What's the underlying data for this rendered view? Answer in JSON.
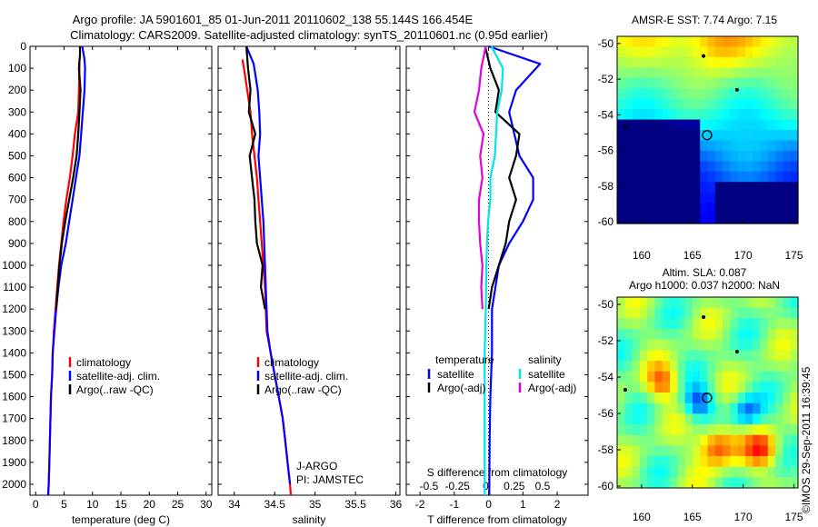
{
  "header": {
    "line1": "Argo profile: JA 5901601_85 01-Jun-2011 20110602_138 55.144S 166.454E",
    "line2": "Climatology: CARS2009. Satellite-adjusted climatology: synTS_20110601.nc (0.95d earlier)"
  },
  "chart_data": [
    {
      "type": "line",
      "xlabel": "temperature (deg C)",
      "ylabel": "",
      "xlim": [
        -1,
        31
      ],
      "ylim": [
        2050,
        0
      ],
      "y_reversed": true,
      "xticks": [
        "0",
        "5",
        "10",
        "15",
        "20",
        "25",
        "30"
      ],
      "yticks": [
        "0",
        "100",
        "200",
        "300",
        "400",
        "500",
        "600",
        "700",
        "800",
        "900",
        "1000",
        "1100",
        "1200",
        "1300",
        "1400",
        "1500",
        "1600",
        "1700",
        "1800",
        "1900",
        "2000"
      ],
      "legend": {
        "position": "lower-right",
        "entries": [
          "climatology",
          "satellite-adj. clim.",
          "Argo(..raw -QC)"
        ]
      },
      "series": [
        {
          "name": "climatology",
          "color": "#ff0000",
          "points": [
            [
              7.7,
              60
            ],
            [
              7.7,
              100
            ],
            [
              7.6,
              200
            ],
            [
              7.5,
              300
            ],
            [
              6.9,
              400
            ],
            [
              6.5,
              500
            ],
            [
              6.0,
              600
            ],
            [
              5.4,
              700
            ],
            [
              4.9,
              800
            ],
            [
              4.5,
              900
            ],
            [
              4.1,
              1000
            ],
            [
              3.8,
              1100
            ],
            [
              3.5,
              1200
            ],
            [
              3.2,
              1300
            ],
            [
              3.0,
              1400
            ],
            [
              2.9,
              1500
            ],
            [
              2.7,
              1600
            ],
            [
              2.6,
              1700
            ],
            [
              2.5,
              1800
            ],
            [
              2.4,
              1900
            ],
            [
              2.3,
              2000
            ],
            [
              2.2,
              2050
            ]
          ]
        },
        {
          "name": "satellite-adj. clim.",
          "color": "#0000ff",
          "points": [
            [
              8.2,
              0
            ],
            [
              8.6,
              60
            ],
            [
              8.7,
              100
            ],
            [
              8.6,
              200
            ],
            [
              8.3,
              300
            ],
            [
              8.0,
              400
            ],
            [
              7.7,
              500
            ],
            [
              7.1,
              600
            ],
            [
              6.5,
              700
            ],
            [
              5.9,
              800
            ],
            [
              5.3,
              900
            ],
            [
              4.5,
              1000
            ],
            [
              4.0,
              1100
            ],
            [
              3.6,
              1200
            ],
            [
              3.3,
              1300
            ],
            [
              3.0,
              1400
            ],
            [
              2.9,
              1500
            ],
            [
              2.7,
              1600
            ],
            [
              2.6,
              1700
            ],
            [
              2.5,
              1800
            ],
            [
              2.4,
              1900
            ],
            [
              2.3,
              2000
            ],
            [
              2.2,
              2050
            ]
          ]
        },
        {
          "name": "Argo(..raw -QC)",
          "color": "#000000",
          "points": [
            [
              7.8,
              0
            ],
            [
              7.8,
              40
            ],
            [
              7.6,
              100
            ],
            [
              7.9,
              200
            ],
            [
              7.7,
              300
            ],
            [
              7.5,
              400
            ],
            [
              7.2,
              500
            ],
            [
              6.6,
              600
            ],
            [
              5.9,
              700
            ],
            [
              5.2,
              800
            ],
            [
              4.6,
              900
            ],
            [
              4.2,
              1000
            ],
            [
              3.9,
              1100
            ],
            [
              3.6,
              1200
            ]
          ]
        }
      ]
    },
    {
      "type": "line",
      "xlabel": "salinity",
      "ylabel": "",
      "xlim": [
        33.8,
        36.05
      ],
      "ylim": [
        2050,
        0
      ],
      "y_reversed": true,
      "xticks": [
        "34",
        "34.5",
        "35",
        "35.5",
        "36"
      ],
      "legend": {
        "position": "lower-right",
        "entries": [
          "climatology",
          "satellite-adj. clim.",
          "Argo(..raw -QC)"
        ]
      },
      "annotation": [
        "J-ARGO",
        "PI: JAMSTEC"
      ],
      "series": [
        {
          "name": "climatology",
          "color": "#ff0000",
          "points": [
            [
              34.1,
              60
            ],
            [
              34.12,
              100
            ],
            [
              34.16,
              200
            ],
            [
              34.2,
              300
            ],
            [
              34.22,
              400
            ],
            [
              34.25,
              500
            ],
            [
              34.28,
              600
            ],
            [
              34.3,
              700
            ],
            [
              34.32,
              800
            ],
            [
              34.34,
              900
            ],
            [
              34.36,
              1000
            ],
            [
              34.38,
              1100
            ],
            [
              34.39,
              1200
            ],
            [
              34.4,
              1300
            ],
            [
              34.45,
              1400
            ],
            [
              34.5,
              1500
            ],
            [
              34.55,
              1600
            ],
            [
              34.6,
              1700
            ],
            [
              34.63,
              1800
            ],
            [
              34.66,
              1900
            ],
            [
              34.69,
              2000
            ],
            [
              34.7,
              2050
            ]
          ]
        },
        {
          "name": "satellite-adj. clim.",
          "color": "#0000ff",
          "points": [
            [
              34.15,
              0
            ],
            [
              34.24,
              80
            ],
            [
              34.29,
              200
            ],
            [
              34.31,
              300
            ],
            [
              34.32,
              400
            ],
            [
              34.3,
              500
            ],
            [
              34.32,
              600
            ],
            [
              34.34,
              700
            ],
            [
              34.36,
              800
            ],
            [
              34.37,
              900
            ],
            [
              34.38,
              1000
            ],
            [
              34.39,
              1100
            ],
            [
              34.4,
              1200
            ],
            [
              34.41,
              1300
            ],
            [
              34.45,
              1400
            ],
            [
              34.5,
              1500
            ],
            [
              34.55,
              1600
            ],
            [
              34.6,
              1700
            ],
            [
              34.63,
              1800
            ],
            [
              34.66,
              1900
            ],
            [
              34.69,
              2000
            ]
          ]
        },
        {
          "name": "Argo(..raw -QC)",
          "color": "#000000",
          "points": [
            [
              34.15,
              0
            ],
            [
              34.17,
              100
            ],
            [
              34.2,
              200
            ],
            [
              34.18,
              300
            ],
            [
              34.26,
              400
            ],
            [
              34.19,
              500
            ],
            [
              34.22,
              600
            ],
            [
              34.25,
              700
            ],
            [
              34.26,
              800
            ],
            [
              34.28,
              900
            ],
            [
              34.35,
              1000
            ],
            [
              34.33,
              1100
            ],
            [
              34.38,
              1200
            ]
          ]
        }
      ]
    },
    {
      "type": "line",
      "xlabel": "T difference from climatology",
      "xlabel_top": "S difference from climatology",
      "xlim": [
        -2.4,
        2.9
      ],
      "xlim_top": [
        -0.7,
        0.9
      ],
      "ylim": [
        2050,
        0
      ],
      "y_reversed": true,
      "xticks": [
        "-2",
        "-1",
        "0",
        "1",
        "2"
      ],
      "xticks_top": [
        "-0.5",
        "-0.25",
        "0",
        "0.25",
        "0.5"
      ],
      "legend": {
        "position": "lower-center",
        "headers": [
          "temperature",
          "salinity"
        ],
        "entries": [
          "satellite",
          "Argo(-adj)",
          "satellite",
          "Argo(-adj)"
        ]
      },
      "series": [
        {
          "name": "satellite",
          "group": "temperature",
          "axis": "T",
          "color": "#0000ff",
          "points": [
            [
              0,
              0
            ],
            [
              1.5,
              80
            ],
            [
              0.8,
              200
            ],
            [
              0.6,
              300
            ],
            [
              0.9,
              500
            ],
            [
              1.3,
              600
            ],
            [
              1.3,
              700
            ],
            [
              1.0,
              800
            ],
            [
              0.6,
              900
            ],
            [
              0.3,
              1000
            ],
            [
              0.2,
              1100
            ],
            [
              0.1,
              1200
            ],
            [
              0.1,
              1400
            ],
            [
              0.05,
              1600
            ],
            [
              0.03,
              1800
            ],
            [
              0.02,
              2050
            ]
          ]
        },
        {
          "name": "Argo(-adj)",
          "group": "temperature",
          "axis": "T",
          "color": "#000000",
          "points": [
            [
              -0.1,
              0
            ],
            [
              0.05,
              100
            ],
            [
              0.3,
              200
            ],
            [
              0.2,
              300
            ],
            [
              0.9,
              400
            ],
            [
              0.8,
              500
            ],
            [
              0.6,
              600
            ],
            [
              0.8,
              700
            ],
            [
              0.6,
              800
            ],
            [
              0.5,
              900
            ],
            [
              0.3,
              1000
            ],
            [
              0.1,
              1100
            ],
            [
              0.0,
              1200
            ]
          ]
        },
        {
          "name": "satellite",
          "group": "salinity",
          "axis": "S",
          "color": "#00e5e5",
          "points": [
            [
              0.05,
              0
            ],
            [
              0.15,
              100
            ],
            [
              0.14,
              200
            ],
            [
              0.1,
              300
            ],
            [
              0.09,
              400
            ],
            [
              0.08,
              500
            ],
            [
              0.04,
              600
            ],
            [
              0.04,
              700
            ],
            [
              0.02,
              800
            ],
            [
              0.01,
              900
            ],
            [
              0.005,
              1000
            ],
            [
              0.0,
              1200
            ],
            [
              -0.01,
              1400
            ],
            [
              -0.01,
              1700
            ],
            [
              -0.01,
              2050
            ]
          ]
        },
        {
          "name": "Argo(-adj)",
          "group": "salinity",
          "axis": "S",
          "color": "#e000e0",
          "points": [
            [
              0.0,
              0
            ],
            [
              -0.04,
              100
            ],
            [
              -0.06,
              200
            ],
            [
              -0.1,
              300
            ],
            [
              -0.02,
              400
            ],
            [
              -0.05,
              500
            ],
            [
              -0.03,
              600
            ],
            [
              -0.06,
              700
            ],
            [
              -0.06,
              800
            ],
            [
              -0.05,
              900
            ],
            [
              -0.03,
              1000
            ],
            [
              -0.04,
              1100
            ],
            [
              -0.03,
              1200
            ]
          ]
        }
      ]
    }
  ],
  "maps": [
    {
      "title": "AMSR-E SST: 7.74 Argo: 7.15",
      "xticks": [
        "160",
        "165",
        "170",
        "175"
      ],
      "yticks": [
        "-50",
        "-52",
        "-54",
        "-56",
        "-58",
        "-60"
      ],
      "lon_range": [
        157.6,
        175.4
      ],
      "lat_range": [
        -60.1,
        -49.6
      ],
      "profile_location": [
        166.45,
        -55.14
      ],
      "other_profiles": [
        [
          166.1,
          -50.7
        ],
        [
          169.4,
          -52.6
        ],
        [
          158.4,
          -54.7
        ]
      ]
    },
    {
      "title_lines": [
        "Altim. SLA: 0.087",
        "Argo h1000: 0.037 h2000: NaN"
      ],
      "xticks": [
        "160",
        "165",
        "170",
        "175"
      ],
      "yticks": [
        "-50",
        "-52",
        "-54",
        "-56",
        "-58",
        "-60"
      ],
      "lon_range": [
        157.6,
        175.4
      ],
      "lat_range": [
        -60.1,
        -49.6
      ],
      "profile_location": [
        166.45,
        -55.14
      ],
      "other_profiles": [
        [
          166.1,
          -50.7
        ],
        [
          169.4,
          -52.6
        ],
        [
          158.4,
          -54.7
        ]
      ]
    }
  ],
  "credit": "©IMOS 29-Sep-2011 16:39:45",
  "colors": {
    "climatology": "#ff0000",
    "satellite_adj": "#0000ff",
    "argo": "#000000",
    "sal_satellite": "#00e5e5",
    "sal_argo": "#e000e0"
  }
}
